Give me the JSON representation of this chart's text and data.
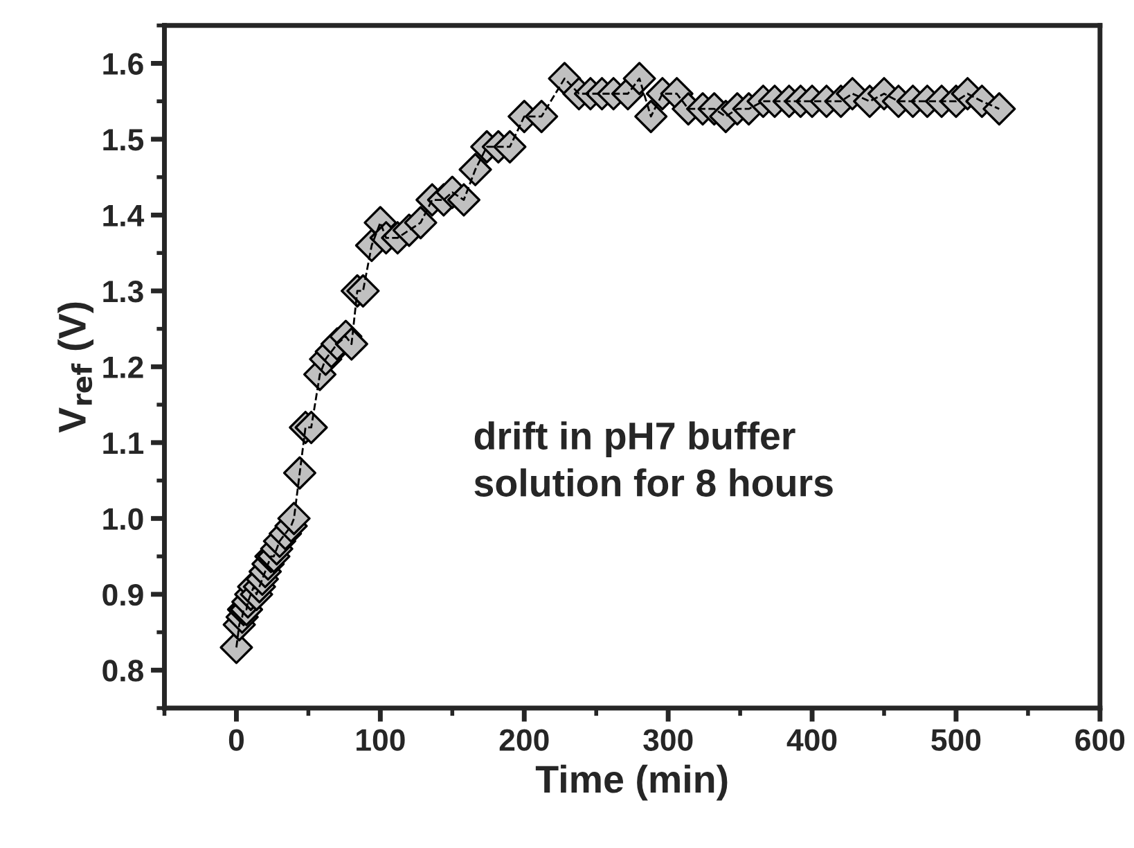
{
  "chart_data": {
    "type": "scatter",
    "xlabel": "Time (min)",
    "ylabel": "V$_{ref}$ (V)",
    "annotations": [
      "drift in pH7 buffer\nsolution for 8 hours"
    ],
    "xlim": [
      -50,
      600
    ],
    "xticks": [
      0,
      100,
      200,
      300,
      400,
      500,
      600
    ],
    "ylim": [
      0.75,
      1.65
    ],
    "yticks": [
      0.8,
      0.9,
      {
        "value": 1.0,
        "label": "1.0"
      },
      1.1,
      1.2,
      1.3,
      1.4,
      1.5,
      1.6
    ],
    "marker": "diamond",
    "line_style": "dashed",
    "grid": false,
    "legend": false,
    "series": [
      {
        "type": "line",
        "marker": "none",
        "color": "#000000",
        "x": [
          0,
          2,
          4,
          5,
          7,
          8,
          10,
          12,
          14,
          16,
          18,
          20,
          22,
          24,
          26,
          28,
          30,
          34,
          38,
          40,
          44,
          48,
          52,
          58,
          62,
          66,
          70,
          76,
          80,
          84,
          88,
          94,
          100,
          104,
          112,
          120,
          128,
          136,
          144,
          150,
          158,
          166,
          174,
          182,
          190,
          200,
          212,
          228,
          238,
          246,
          254,
          262,
          272,
          280,
          288,
          296,
          306,
          314,
          324,
          332,
          340,
          348,
          356,
          366,
          374,
          384,
          392,
          400,
          410,
          420,
          428,
          440,
          450,
          460,
          470,
          480,
          490,
          500,
          508,
          518,
          530
        ],
        "values": [
          0.83,
          0.86,
          0.87,
          0.88,
          0.88,
          0.89,
          0.9,
          0.91,
          0.9,
          0.91,
          0.92,
          0.93,
          0.94,
          0.95,
          0.95,
          0.96,
          0.97,
          0.98,
          0.99,
          1.0,
          1.06,
          1.12,
          1.12,
          1.19,
          1.21,
          1.22,
          1.23,
          1.24,
          1.23,
          1.3,
          1.3,
          1.36,
          1.39,
          1.37,
          1.37,
          1.38,
          1.39,
          1.42,
          1.42,
          1.43,
          1.42,
          1.46,
          1.49,
          1.49,
          1.49,
          1.53,
          1.53,
          1.58,
          1.56,
          1.56,
          1.56,
          1.56,
          1.56,
          1.58,
          1.53,
          1.56,
          1.56,
          1.54,
          1.54,
          1.54,
          1.53,
          1.54,
          1.54,
          1.55,
          1.55,
          1.55,
          1.55,
          1.55,
          1.55,
          1.55,
          1.56,
          1.55,
          1.56,
          1.55,
          1.55,
          1.55,
          1.55,
          1.55,
          1.56,
          1.55,
          1.54
        ]
      },
      {
        "color": "#c0c0c0",
        "x": [
          0,
          2,
          4,
          5,
          7,
          8,
          10,
          12,
          14,
          16,
          18,
          20,
          22,
          24,
          26,
          28,
          30,
          34,
          38,
          40,
          44,
          48,
          52,
          58,
          62,
          66,
          70,
          76,
          80,
          84,
          88,
          94,
          100,
          104,
          112,
          120,
          128,
          136,
          144,
          150,
          158,
          166,
          174,
          182,
          190,
          200,
          212,
          228,
          238,
          246,
          254,
          262,
          272,
          280,
          288,
          296,
          306,
          314,
          324,
          332,
          340,
          348,
          356,
          366,
          374,
          384,
          392,
          400,
          410,
          420,
          428,
          440,
          450,
          460,
          470,
          480,
          490,
          500,
          508,
          518,
          530
        ],
        "values": [
          0.83,
          0.86,
          0.87,
          0.88,
          0.88,
          0.89,
          0.9,
          0.91,
          0.9,
          0.91,
          0.92,
          0.93,
          0.94,
          0.95,
          0.95,
          0.96,
          0.97,
          0.98,
          0.99,
          1.0,
          1.06,
          1.12,
          1.12,
          1.19,
          1.21,
          1.22,
          1.23,
          1.24,
          1.23,
          1.3,
          1.3,
          1.36,
          1.39,
          1.37,
          1.37,
          1.38,
          1.39,
          1.42,
          1.42,
          1.43,
          1.42,
          1.46,
          1.49,
          1.49,
          1.49,
          1.53,
          1.53,
          1.58,
          1.56,
          1.56,
          1.56,
          1.56,
          1.56,
          1.58,
          1.53,
          1.56,
          1.56,
          1.54,
          1.54,
          1.54,
          1.53,
          1.54,
          1.54,
          1.55,
          1.55,
          1.55,
          1.55,
          1.55,
          1.55,
          1.55,
          1.56,
          1.55,
          1.56,
          1.55,
          1.55,
          1.55,
          1.55,
          1.55,
          1.56,
          1.55,
          1.54
        ]
      }
    ]
  }
}
